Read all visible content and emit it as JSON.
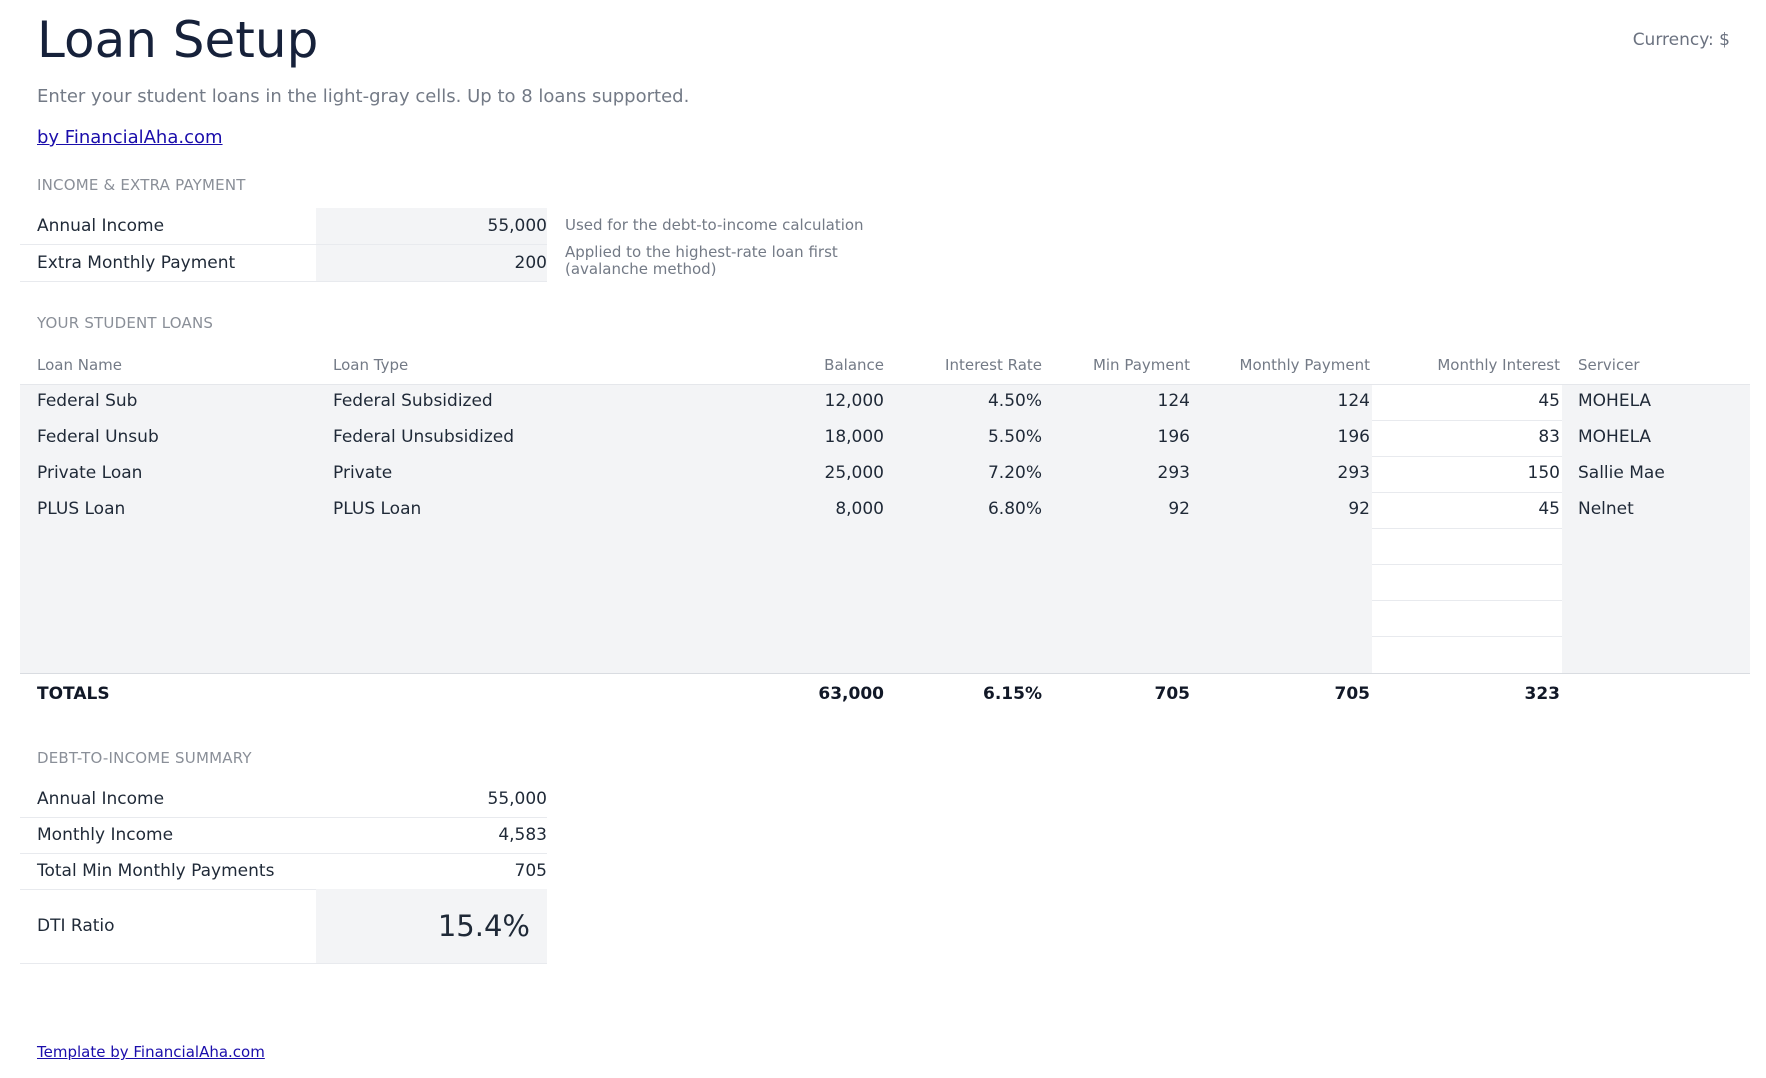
{
  "header": {
    "title": "Loan Setup",
    "currency": "Currency: $",
    "subtitle": "Enter your student loans in the light-gray cells. Up to 8 loans supported.",
    "brand_link": "by FinancialAha.com"
  },
  "income": {
    "section_title": "INCOME & EXTRA PAYMENT",
    "annual_income_label": "Annual Income",
    "annual_income_value": "55,000",
    "annual_income_note": "Used for the debt-to-income calculation",
    "extra_payment_label": "Extra Monthly Payment",
    "extra_payment_value": "200",
    "extra_payment_note_line1": "Applied to the highest-rate loan first",
    "extra_payment_note_line2": "(avalanche method)"
  },
  "loans": {
    "section_title": "YOUR STUDENT LOANS",
    "columns": [
      "Loan Name",
      "Loan Type",
      "Balance",
      "Interest Rate",
      "Min Payment",
      "Monthly Payment",
      "Monthly Interest",
      "Servicer"
    ],
    "rows": [
      {
        "name": "Federal Sub",
        "type": "Federal Subsidized",
        "balance": "12,000",
        "rate": "4.50%",
        "min": "124",
        "monthly": "124",
        "interest": "45",
        "servicer": "MOHELA"
      },
      {
        "name": "Federal Unsub",
        "type": "Federal Unsubsidized",
        "balance": "18,000",
        "rate": "5.50%",
        "min": "196",
        "monthly": "196",
        "interest": "83",
        "servicer": "MOHELA"
      },
      {
        "name": "Private Loan",
        "type": "Private",
        "balance": "25,000",
        "rate": "7.20%",
        "min": "293",
        "monthly": "293",
        "interest": "150",
        "servicer": "Sallie Mae"
      },
      {
        "name": "PLUS Loan",
        "type": "PLUS Loan",
        "balance": "8,000",
        "rate": "6.80%",
        "min": "92",
        "monthly": "92",
        "interest": "45",
        "servicer": "Nelnet"
      }
    ],
    "totals": {
      "label": "TOTALS",
      "balance": "63,000",
      "rate": "6.15%",
      "min": "705",
      "monthly": "705",
      "interest": "323"
    }
  },
  "dti": {
    "section_title": "DEBT-TO-INCOME SUMMARY",
    "annual_income_label": "Annual Income",
    "annual_income_value": "55,000",
    "monthly_income_label": "Monthly Income",
    "monthly_income_value": "4,583",
    "total_min_label": "Total Min Monthly Payments",
    "total_min_value": "705",
    "ratio_label": "DTI Ratio",
    "ratio_value": "15.4%"
  },
  "footer": {
    "link": "Template by FinancialAha.com"
  },
  "colors": {
    "title": "#16213a",
    "input_cell_bg": "#f3f4f6",
    "muted_text": "#737a86",
    "link": "#1a0dab"
  }
}
